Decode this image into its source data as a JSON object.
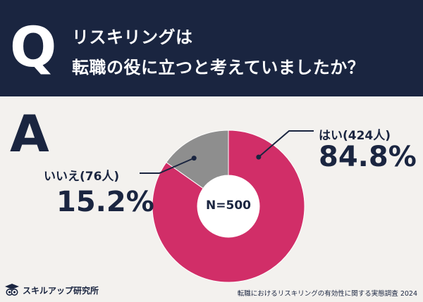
{
  "header": {
    "q_mark": "Q",
    "question_line1": "リスキリングは",
    "question_line2": "転職の役に立つと考えていましたか？"
  },
  "answer_mark": "A",
  "chart_data": {
    "type": "pie",
    "donut": true,
    "center_label": "N=500",
    "slices": [
      {
        "label": "はい(424人)",
        "value": 424,
        "percent": "84.8%",
        "color": "#d12e68"
      },
      {
        "label": "いいえ(76人)",
        "value": 76,
        "percent": "15.2%",
        "color": "#8e8e8e"
      }
    ],
    "total": 500
  },
  "footer": {
    "brand": "スキルアップ研究所",
    "source": "転職におけるリスキリングの有効性に関する実態調査 2024"
  },
  "colors": {
    "navy": "#1a2540",
    "background": "#f3f1ee",
    "yes": "#d12e68",
    "no": "#8e8e8e"
  }
}
